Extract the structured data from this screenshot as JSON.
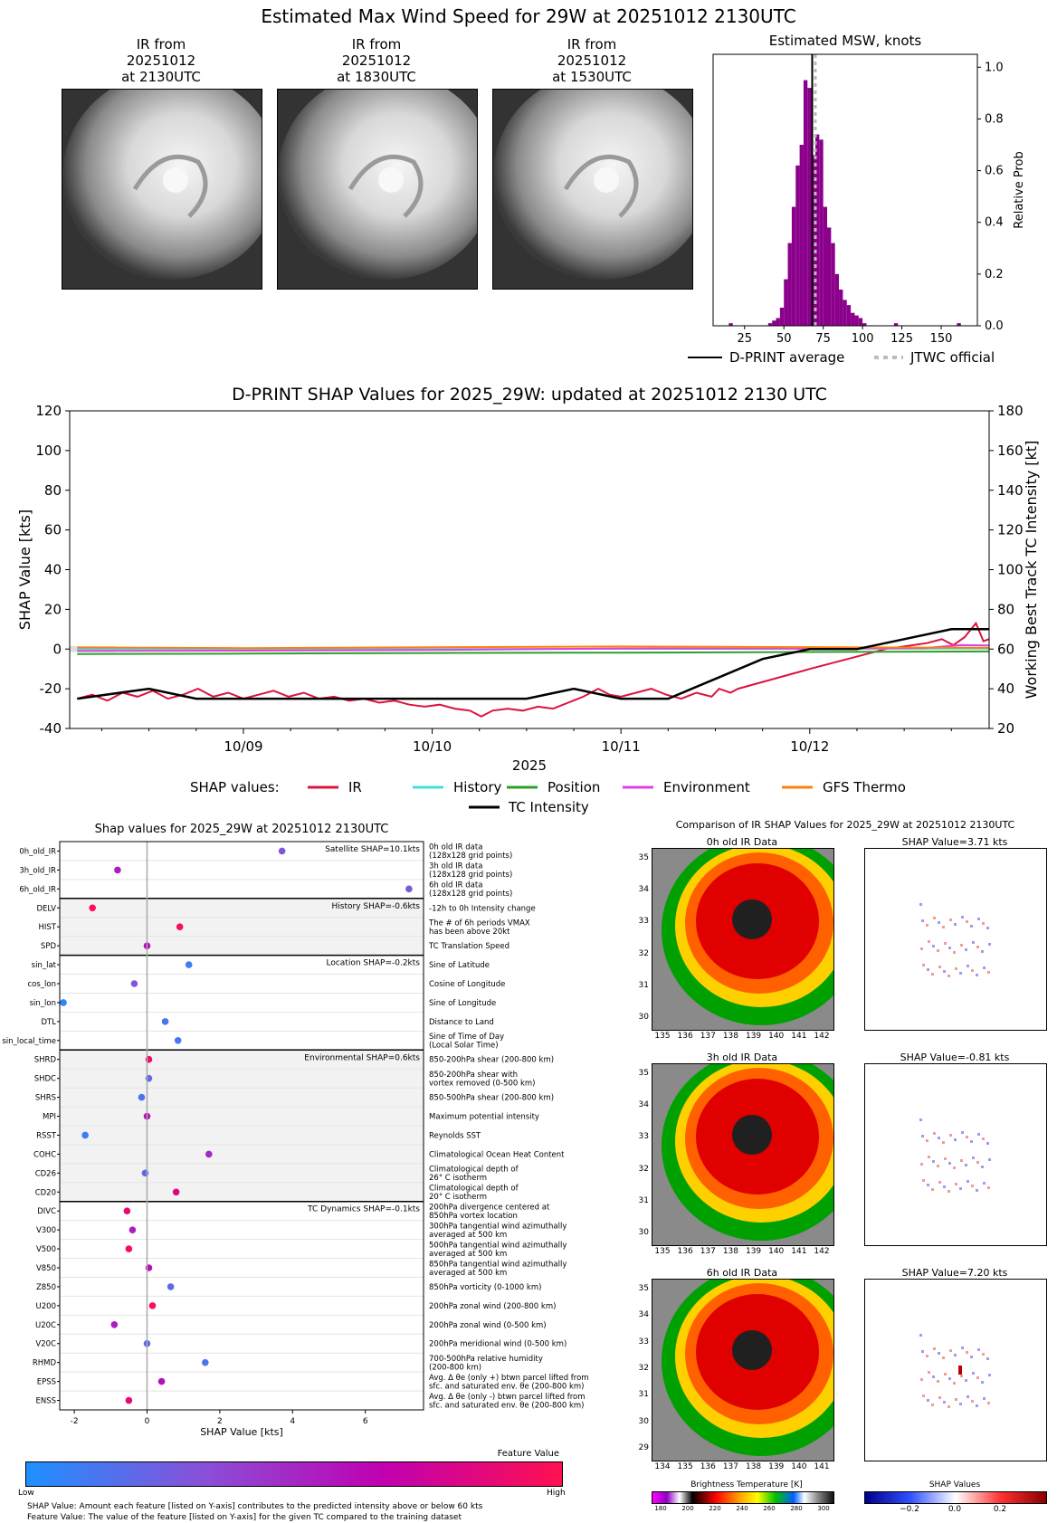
{
  "header": {
    "title": "Estimated Max Wind Speed for 29W at 20251012 2130UTC"
  },
  "ir_images": [
    {
      "caption_lines": [
        "IR from",
        "20251012",
        "at 2130UTC"
      ],
      "image_icon": "satellite-ir-image"
    },
    {
      "caption_lines": [
        "IR from",
        "20251012",
        "at 1830UTC"
      ],
      "image_icon": "satellite-ir-image"
    },
    {
      "caption_lines": [
        "IR from",
        "20251012",
        "at 1530UTC"
      ],
      "image_icon": "satellite-ir-image"
    }
  ],
  "chart_data": [
    {
      "type": "bar",
      "id": "msw-histogram",
      "title": "Estimated MSW, knots",
      "xlabel": "",
      "ylabel": "Relative Prob",
      "xlim": [
        5,
        173
      ],
      "ylim": [
        0,
        1.05
      ],
      "xticks": [
        "25",
        "50",
        "75",
        "100",
        "125",
        "150"
      ],
      "yticks": [
        "0.0",
        "0.2",
        "0.4",
        "0.6",
        "0.8",
        "1.0"
      ],
      "bin_width": 2.5,
      "bins": [
        {
          "x": 15,
          "y": 0.01
        },
        {
          "x": 40,
          "y": 0.01
        },
        {
          "x": 42.5,
          "y": 0.02
        },
        {
          "x": 45,
          "y": 0.03
        },
        {
          "x": 47.5,
          "y": 0.07
        },
        {
          "x": 50,
          "y": 0.18
        },
        {
          "x": 52.5,
          "y": 0.32
        },
        {
          "x": 55,
          "y": 0.46
        },
        {
          "x": 57.5,
          "y": 0.62
        },
        {
          "x": 60,
          "y": 0.7
        },
        {
          "x": 62.5,
          "y": 0.95
        },
        {
          "x": 65,
          "y": 0.92
        },
        {
          "x": 67.5,
          "y": 0.66
        },
        {
          "x": 70,
          "y": 0.74
        },
        {
          "x": 72.5,
          "y": 0.72
        },
        {
          "x": 75,
          "y": 0.46
        },
        {
          "x": 77.5,
          "y": 0.38
        },
        {
          "x": 80,
          "y": 0.32
        },
        {
          "x": 82.5,
          "y": 0.2
        },
        {
          "x": 85,
          "y": 0.14
        },
        {
          "x": 87.5,
          "y": 0.1
        },
        {
          "x": 90,
          "y": 0.08
        },
        {
          "x": 92.5,
          "y": 0.05
        },
        {
          "x": 95,
          "y": 0.04
        },
        {
          "x": 97.5,
          "y": 0.03
        },
        {
          "x": 100,
          "y": 0.01
        },
        {
          "x": 120,
          "y": 0.01
        },
        {
          "x": 160,
          "y": 0.01
        }
      ],
      "bar_color": "#8b008b",
      "dprint_average": 68,
      "jtwc_official": 70,
      "legend": [
        {
          "label": "D-PRINT average",
          "style": "solid",
          "color": "#000000"
        },
        {
          "label": "JTWC official",
          "style": "dotted",
          "color": "#bbbbbb"
        }
      ]
    },
    {
      "type": "line",
      "id": "shap-timeseries",
      "title": "D-PRINT SHAP Values for 2025_29W: updated at 20251012 2130 UTC",
      "xlabel": "2025",
      "ylabel": "SHAP Value [kts]",
      "ylabel_right": "Working Best Track TC Intensity [kt]",
      "ylim": [
        -40,
        120
      ],
      "ylim_right": [
        20,
        180
      ],
      "yticks": [
        "-40",
        "-20",
        "0",
        "20",
        "40",
        "60",
        "80",
        "100",
        "120"
      ],
      "yticks_right": [
        "20",
        "40",
        "60",
        "80",
        "100",
        "120",
        "140",
        "160",
        "180"
      ],
      "xlim_days": [
        8.08,
        12.95
      ],
      "xticks": [
        {
          "label": "10/09",
          "day": 9
        },
        {
          "label": "10/10",
          "day": 10
        },
        {
          "label": "10/11",
          "day": 11
        },
        {
          "label": "10/12",
          "day": 12
        }
      ],
      "legend_title": "SHAP values:",
      "series": [
        {
          "name": "IR",
          "color": "#dc143c",
          "points": [
            [
              8.12,
              -25
            ],
            [
              8.2,
              -23
            ],
            [
              8.28,
              -26
            ],
            [
              8.36,
              -22
            ],
            [
              8.44,
              -24
            ],
            [
              8.52,
              -21
            ],
            [
              8.6,
              -25
            ],
            [
              8.68,
              -23
            ],
            [
              8.76,
              -20
            ],
            [
              8.84,
              -24
            ],
            [
              8.92,
              -22
            ],
            [
              9.0,
              -25
            ],
            [
              9.08,
              -23
            ],
            [
              9.16,
              -21
            ],
            [
              9.24,
              -24
            ],
            [
              9.32,
              -22
            ],
            [
              9.4,
              -25
            ],
            [
              9.48,
              -24
            ],
            [
              9.56,
              -26
            ],
            [
              9.64,
              -25
            ],
            [
              9.72,
              -27
            ],
            [
              9.8,
              -26
            ],
            [
              9.88,
              -28
            ],
            [
              9.96,
              -29
            ],
            [
              10.04,
              -28
            ],
            [
              10.12,
              -30
            ],
            [
              10.2,
              -31
            ],
            [
              10.26,
              -34
            ],
            [
              10.32,
              -31
            ],
            [
              10.4,
              -30
            ],
            [
              10.48,
              -31
            ],
            [
              10.56,
              -29
            ],
            [
              10.64,
              -30
            ],
            [
              10.72,
              -27
            ],
            [
              10.8,
              -24
            ],
            [
              10.88,
              -20
            ],
            [
              10.94,
              -23
            ],
            [
              11.0,
              -24
            ],
            [
              11.08,
              -22
            ],
            [
              11.16,
              -20
            ],
            [
              11.24,
              -23
            ],
            [
              11.32,
              -25
            ],
            [
              11.4,
              -22
            ],
            [
              11.48,
              -24
            ],
            [
              11.52,
              -20
            ],
            [
              11.58,
              -22
            ],
            [
              11.62,
              -20
            ],
            [
              12.0,
              -10
            ],
            [
              12.4,
              0
            ],
            [
              12.62,
              3
            ],
            [
              12.7,
              5
            ],
            [
              12.76,
              2
            ],
            [
              12.82,
              6
            ],
            [
              12.88,
              13
            ],
            [
              12.92,
              4
            ],
            [
              12.95,
              5
            ]
          ]
        },
        {
          "name": "History",
          "color": "#40e0e0",
          "points": [
            [
              8.12,
              0
            ],
            [
              12.95,
              0.2
            ]
          ]
        },
        {
          "name": "Position",
          "color": "#2ca02c",
          "points": [
            [
              8.12,
              -2.5
            ],
            [
              9.0,
              -2.3
            ],
            [
              10.0,
              -2.0
            ],
            [
              11.0,
              -1.8
            ],
            [
              12.0,
              -1.5
            ],
            [
              12.95,
              -1.2
            ]
          ]
        },
        {
          "name": "Environment",
          "color": "#e040e0",
          "points": [
            [
              8.12,
              -1.0
            ],
            [
              9.0,
              -0.8
            ],
            [
              10.0,
              -0.5
            ],
            [
              11.0,
              0.3
            ],
            [
              12.0,
              0.2
            ],
            [
              12.6,
              0.5
            ],
            [
              12.8,
              2.0
            ],
            [
              12.95,
              1.8
            ]
          ]
        },
        {
          "name": "GFS Thermo",
          "color": "#ff7f0e",
          "points": [
            [
              8.12,
              0.8
            ],
            [
              9.0,
              0.5
            ],
            [
              10.0,
              0.9
            ],
            [
              11.0,
              1.3
            ],
            [
              12.0,
              1.0
            ],
            [
              12.95,
              0.6
            ]
          ]
        }
      ],
      "intensity": {
        "name": "TC Intensity",
        "color": "#000000",
        "points": [
          [
            8.12,
            35
          ],
          [
            8.5,
            40
          ],
          [
            8.75,
            35
          ],
          [
            10.0,
            35
          ],
          [
            10.5,
            35
          ],
          [
            10.75,
            40
          ],
          [
            11.0,
            35
          ],
          [
            11.25,
            35
          ],
          [
            11.5,
            45
          ],
          [
            11.75,
            55
          ],
          [
            12.0,
            60
          ],
          [
            12.25,
            60
          ],
          [
            12.5,
            65
          ],
          [
            12.75,
            70
          ],
          [
            12.95,
            70
          ]
        ]
      }
    },
    {
      "type": "scatter",
      "id": "shap-features",
      "title": "Shap values for 2025_29W at 20251012 2130UTC",
      "xlabel": "SHAP Value [kts]",
      "xlim": [
        -2.4,
        7.6
      ],
      "xticks": [
        "-2",
        "0",
        "2",
        "4",
        "6"
      ],
      "groups": [
        {
          "label": "Satellite SHAP=10.1kts",
          "shaded": false,
          "features": [
            {
              "name": "0h_old_IR",
              "shap": 3.71,
              "fv": 0.3,
              "desc": "0h old IR data\n(128x128 grid points)"
            },
            {
              "name": "3h_old_IR",
              "shap": -0.81,
              "fv": 0.55,
              "desc": "3h old IR data\n(128x128 grid points)"
            },
            {
              "name": "6h_old_IR",
              "shap": 7.2,
              "fv": 0.28,
              "desc": "6h old IR data\n(128x128 grid points)"
            }
          ]
        },
        {
          "label": "History SHAP=-0.6kts",
          "shaded": true,
          "features": [
            {
              "name": "DELV",
              "shap": -1.5,
              "fv": 0.98,
              "desc": "-12h to 0h Intensity change"
            },
            {
              "name": "HIST",
              "shap": 0.9,
              "fv": 0.95,
              "desc": "The # of 6h periods VMAX\nhas been above 20kt"
            },
            {
              "name": "SPD",
              "shap": 0.0,
              "fv": 0.62,
              "desc": "TC Translation Speed"
            }
          ]
        },
        {
          "label": "Location SHAP=-0.2kts",
          "shaded": false,
          "features": [
            {
              "name": "sin_lat",
              "shap": 1.15,
              "fv": 0.1,
              "desc": "Sine of Latitude"
            },
            {
              "name": "cos_lon",
              "shap": -0.35,
              "fv": 0.3,
              "desc": "Cosine of Longitude"
            },
            {
              "name": "sin_lon",
              "shap": -2.3,
              "fv": 0.05,
              "desc": "Sine of Longitude"
            },
            {
              "name": "DTL",
              "shap": 0.5,
              "fv": 0.15,
              "desc": "Distance to Land"
            },
            {
              "name": "sin_local_time",
              "shap": 0.85,
              "fv": 0.12,
              "desc": "Sine of Time of Day\n(Local Solar Time)"
            }
          ]
        },
        {
          "label": "Environmental SHAP=0.6kts",
          "shaded": true,
          "features": [
            {
              "name": "SHRD",
              "shap": 0.05,
              "fv": 0.92,
              "desc": "850-200hPa shear (200-800 km)"
            },
            {
              "name": "SHDC",
              "shap": 0.05,
              "fv": 0.2,
              "desc": "850-200hPa shear with\nvortex removed (0-500 km)"
            },
            {
              "name": "SHRS",
              "shap": -0.15,
              "fv": 0.15,
              "desc": "850-500hPa shear (200-800 km)"
            },
            {
              "name": "MPI",
              "shap": 0.0,
              "fv": 0.6,
              "desc": "Maximum potential intensity"
            },
            {
              "name": "RSST",
              "shap": -1.7,
              "fv": 0.1,
              "desc": "Reynolds SST"
            },
            {
              "name": "COHC",
              "shap": 1.7,
              "fv": 0.5,
              "desc": "Climatological Ocean Heat Content"
            },
            {
              "name": "CD26",
              "shap": -0.05,
              "fv": 0.2,
              "desc": "Climatological depth of\n26° C isotherm"
            },
            {
              "name": "CD20",
              "shap": 0.8,
              "fv": 0.82,
              "desc": "Climatological depth of\n20° C isotherm"
            }
          ]
        },
        {
          "label": "TC Dynamics SHAP=-0.1kts",
          "shaded": false,
          "features": [
            {
              "name": "DIVC",
              "shap": -0.55,
              "fv": 0.88,
              "desc": "200hPa divergence centered at\n850hPa vortex location"
            },
            {
              "name": "V300",
              "shap": -0.4,
              "fv": 0.55,
              "desc": "300hPa tangential wind azimuthally\naveraged at 500 km"
            },
            {
              "name": "V500",
              "shap": -0.5,
              "fv": 0.95,
              "desc": "500hPa tangential wind azimuthally\naveraged at 500 km"
            },
            {
              "name": "V850",
              "shap": 0.05,
              "fv": 0.6,
              "desc": "850hPa tangential wind azimuthally\naveraged at 500 km"
            },
            {
              "name": "Z850",
              "shap": 0.65,
              "fv": 0.2,
              "desc": "850hPa vorticity (0-1000 km)"
            },
            {
              "name": "U200",
              "shap": 0.15,
              "fv": 0.98,
              "desc": "200hPa zonal wind (200-800 km)"
            },
            {
              "name": "U20C",
              "shap": -0.9,
              "fv": 0.55,
              "desc": "200hPa zonal wind (0-500 km)"
            },
            {
              "name": "V20C",
              "shap": 0.0,
              "fv": 0.2,
              "desc": "200hPa meridional wind (0-500 km)"
            },
            {
              "name": "RHMD",
              "shap": 1.6,
              "fv": 0.15,
              "desc": "700-500hPa relative humidity\n(200-800 km)"
            },
            {
              "name": "EPSS",
              "shap": 0.4,
              "fv": 0.6,
              "desc": "Avg. Δ θe (only +) btwn parcel lifted from\nsfc. and saturated env. θe (200-800 km)"
            },
            {
              "name": "ENSS",
              "shap": -0.5,
              "fv": 0.88,
              "desc": "Avg. Δ θe (only -) btwn parcel lifted from\nsfc. and saturated env. θe (200-800 km)"
            }
          ]
        }
      ]
    }
  ],
  "feature_colorbar": {
    "title": "Feature Value",
    "low": "Low",
    "high": "High",
    "colors": [
      "#1e90ff",
      "#8a4fd8",
      "#c000b0",
      "#ff1050"
    ]
  },
  "footnotes": [
    "SHAP Value: Amount each feature [listed on Y-axis] contributes to the predicted intensity above or below 60 kts",
    "Feature Value: The value of the feature [listed on Y-axis] for the given TC compared to the training dataset"
  ],
  "ir_comparison": {
    "title": "Comparison of IR SHAP Values for 2025_29W at 20251012 2130UTC",
    "rows": [
      {
        "left_title": "0h old IR Data",
        "right_title": "SHAP Value=3.71 kts",
        "yticks": [
          "35",
          "34",
          "33",
          "32",
          "31",
          "30"
        ],
        "xticks": [
          "135",
          "136",
          "137",
          "138",
          "139",
          "140",
          "141",
          "142"
        ]
      },
      {
        "left_title": "3h old IR Data",
        "right_title": "SHAP Value=-0.81 kts",
        "yticks": [
          "35",
          "34",
          "33",
          "32",
          "31",
          "30"
        ],
        "xticks": [
          "135",
          "136",
          "137",
          "138",
          "139",
          "140",
          "141",
          "142"
        ]
      },
      {
        "left_title": "6h old IR Data",
        "right_title": "SHAP Value=7.20 kts",
        "yticks": [
          "35",
          "34",
          "33",
          "32",
          "31",
          "30",
          "29"
        ],
        "xticks": [
          "134",
          "135",
          "136",
          "137",
          "138",
          "139",
          "140",
          "141"
        ]
      }
    ],
    "bt_colorbar": {
      "title": "Brightness Temperature [K]",
      "ticks": [
        "180",
        "200",
        "220",
        "240",
        "260",
        "280",
        "300"
      ]
    },
    "shap_colorbar": {
      "title": "SHAP Values",
      "ticks": [
        "−0.2",
        "0.0",
        "0.2"
      ]
    }
  }
}
